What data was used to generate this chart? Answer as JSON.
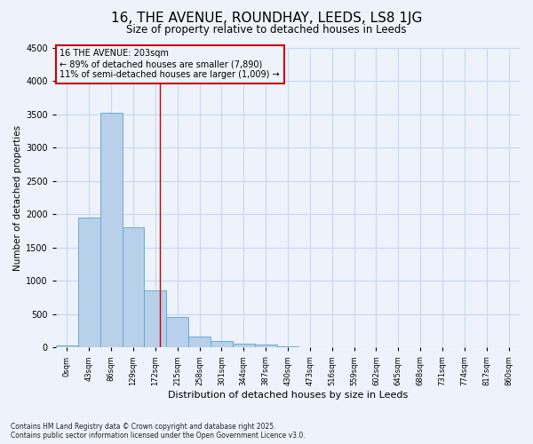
{
  "title_line1": "16, THE AVENUE, ROUNDHAY, LEEDS, LS8 1JG",
  "title_line2": "Size of property relative to detached houses in Leeds",
  "xlabel": "Distribution of detached houses by size in Leeds",
  "ylabel": "Number of detached properties",
  "bar_labels": [
    "0sqm",
    "43sqm",
    "86sqm",
    "129sqm",
    "172sqm",
    "215sqm",
    "258sqm",
    "301sqm",
    "344sqm",
    "387sqm",
    "430sqm",
    "473sqm",
    "516sqm",
    "559sqm",
    "602sqm",
    "645sqm",
    "688sqm",
    "731sqm",
    "774sqm",
    "817sqm",
    "860sqm"
  ],
  "bar_values": [
    30,
    1950,
    3520,
    1810,
    855,
    460,
    160,
    105,
    60,
    40,
    20,
    5,
    2,
    1,
    0,
    0,
    0,
    0,
    0,
    0,
    0
  ],
  "bar_color": "#b8d0ea",
  "bar_edge_color": "#6aaad4",
  "vline_x_bar_index": 4.72,
  "annotation_text_line1": "16 THE AVENUE: 203sqm",
  "annotation_text_line2": "← 89% of detached houses are smaller (7,890)",
  "annotation_text_line3": "11% of semi-detached houses are larger (1,009) →",
  "annotation_box_color": "#cc0000",
  "vline_color": "#cc0000",
  "ylim": [
    0,
    4500
  ],
  "yticks": [
    0,
    500,
    1000,
    1500,
    2000,
    2500,
    3000,
    3500,
    4000,
    4500
  ],
  "grid_color": "#c8d8ee",
  "bg_color": "#eef2fb",
  "footer_line1": "Contains HM Land Registry data © Crown copyright and database right 2025.",
  "footer_line2": "Contains public sector information licensed under the Open Government Licence v3.0."
}
